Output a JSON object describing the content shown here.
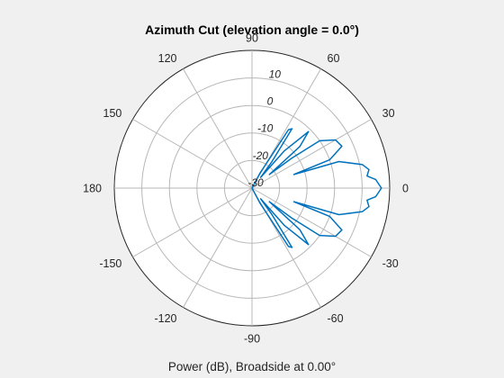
{
  "chart_data": {
    "type": "polar-line",
    "title": "Azimuth Cut (elevation angle = 0.0°)",
    "xlabel": "Power (dB), Broadside at 0.00°",
    "angle_ticks": [
      "90",
      "60",
      "30",
      "0",
      "-30",
      "-60",
      "-90",
      "-120",
      "-150",
      "180",
      "150",
      "120"
    ],
    "angle_tick_values": [
      90,
      60,
      30,
      0,
      -30,
      -60,
      -90,
      -120,
      -150,
      180,
      150,
      120
    ],
    "r_tick_labels": [
      "10",
      "0",
      "-10",
      "-20",
      "-30"
    ],
    "r_tick_values": [
      10,
      0,
      -10,
      -20,
      -30
    ],
    "rlim": [
      -30,
      20
    ],
    "grid": true,
    "series": [
      {
        "color": "#0072bd",
        "points": [
          [
            -90,
            -30
          ],
          [
            -70,
            -30
          ],
          [
            -62,
            -24
          ],
          [
            -58,
            -5
          ],
          [
            -56,
            -4
          ],
          [
            -53,
            -18
          ],
          [
            -51,
            -25
          ],
          [
            -49,
            -12
          ],
          [
            -45,
            -1
          ],
          [
            -41,
            -7
          ],
          [
            -38,
            -22
          ],
          [
            -37,
            -12
          ],
          [
            -35,
            0
          ],
          [
            -30,
            5
          ],
          [
            -25,
            6
          ],
          [
            -20,
            0
          ],
          [
            -18,
            -14
          ],
          [
            -17,
            3
          ],
          [
            -12,
            11
          ],
          [
            -9,
            13
          ],
          [
            -6,
            12
          ],
          [
            -4,
            15
          ],
          [
            0,
            17
          ],
          [
            4,
            15
          ],
          [
            6,
            12
          ],
          [
            9,
            13
          ],
          [
            12,
            11
          ],
          [
            17,
            3
          ],
          [
            18,
            -14
          ],
          [
            20,
            0
          ],
          [
            25,
            6
          ],
          [
            30,
            5
          ],
          [
            35,
            0
          ],
          [
            37,
            -12
          ],
          [
            38,
            -22
          ],
          [
            41,
            -7
          ],
          [
            45,
            -1
          ],
          [
            49,
            -12
          ],
          [
            51,
            -25
          ],
          [
            53,
            -18
          ],
          [
            56,
            -4
          ],
          [
            58,
            -5
          ],
          [
            62,
            -24
          ],
          [
            70,
            -30
          ],
          [
            90,
            -30
          ]
        ]
      }
    ]
  }
}
